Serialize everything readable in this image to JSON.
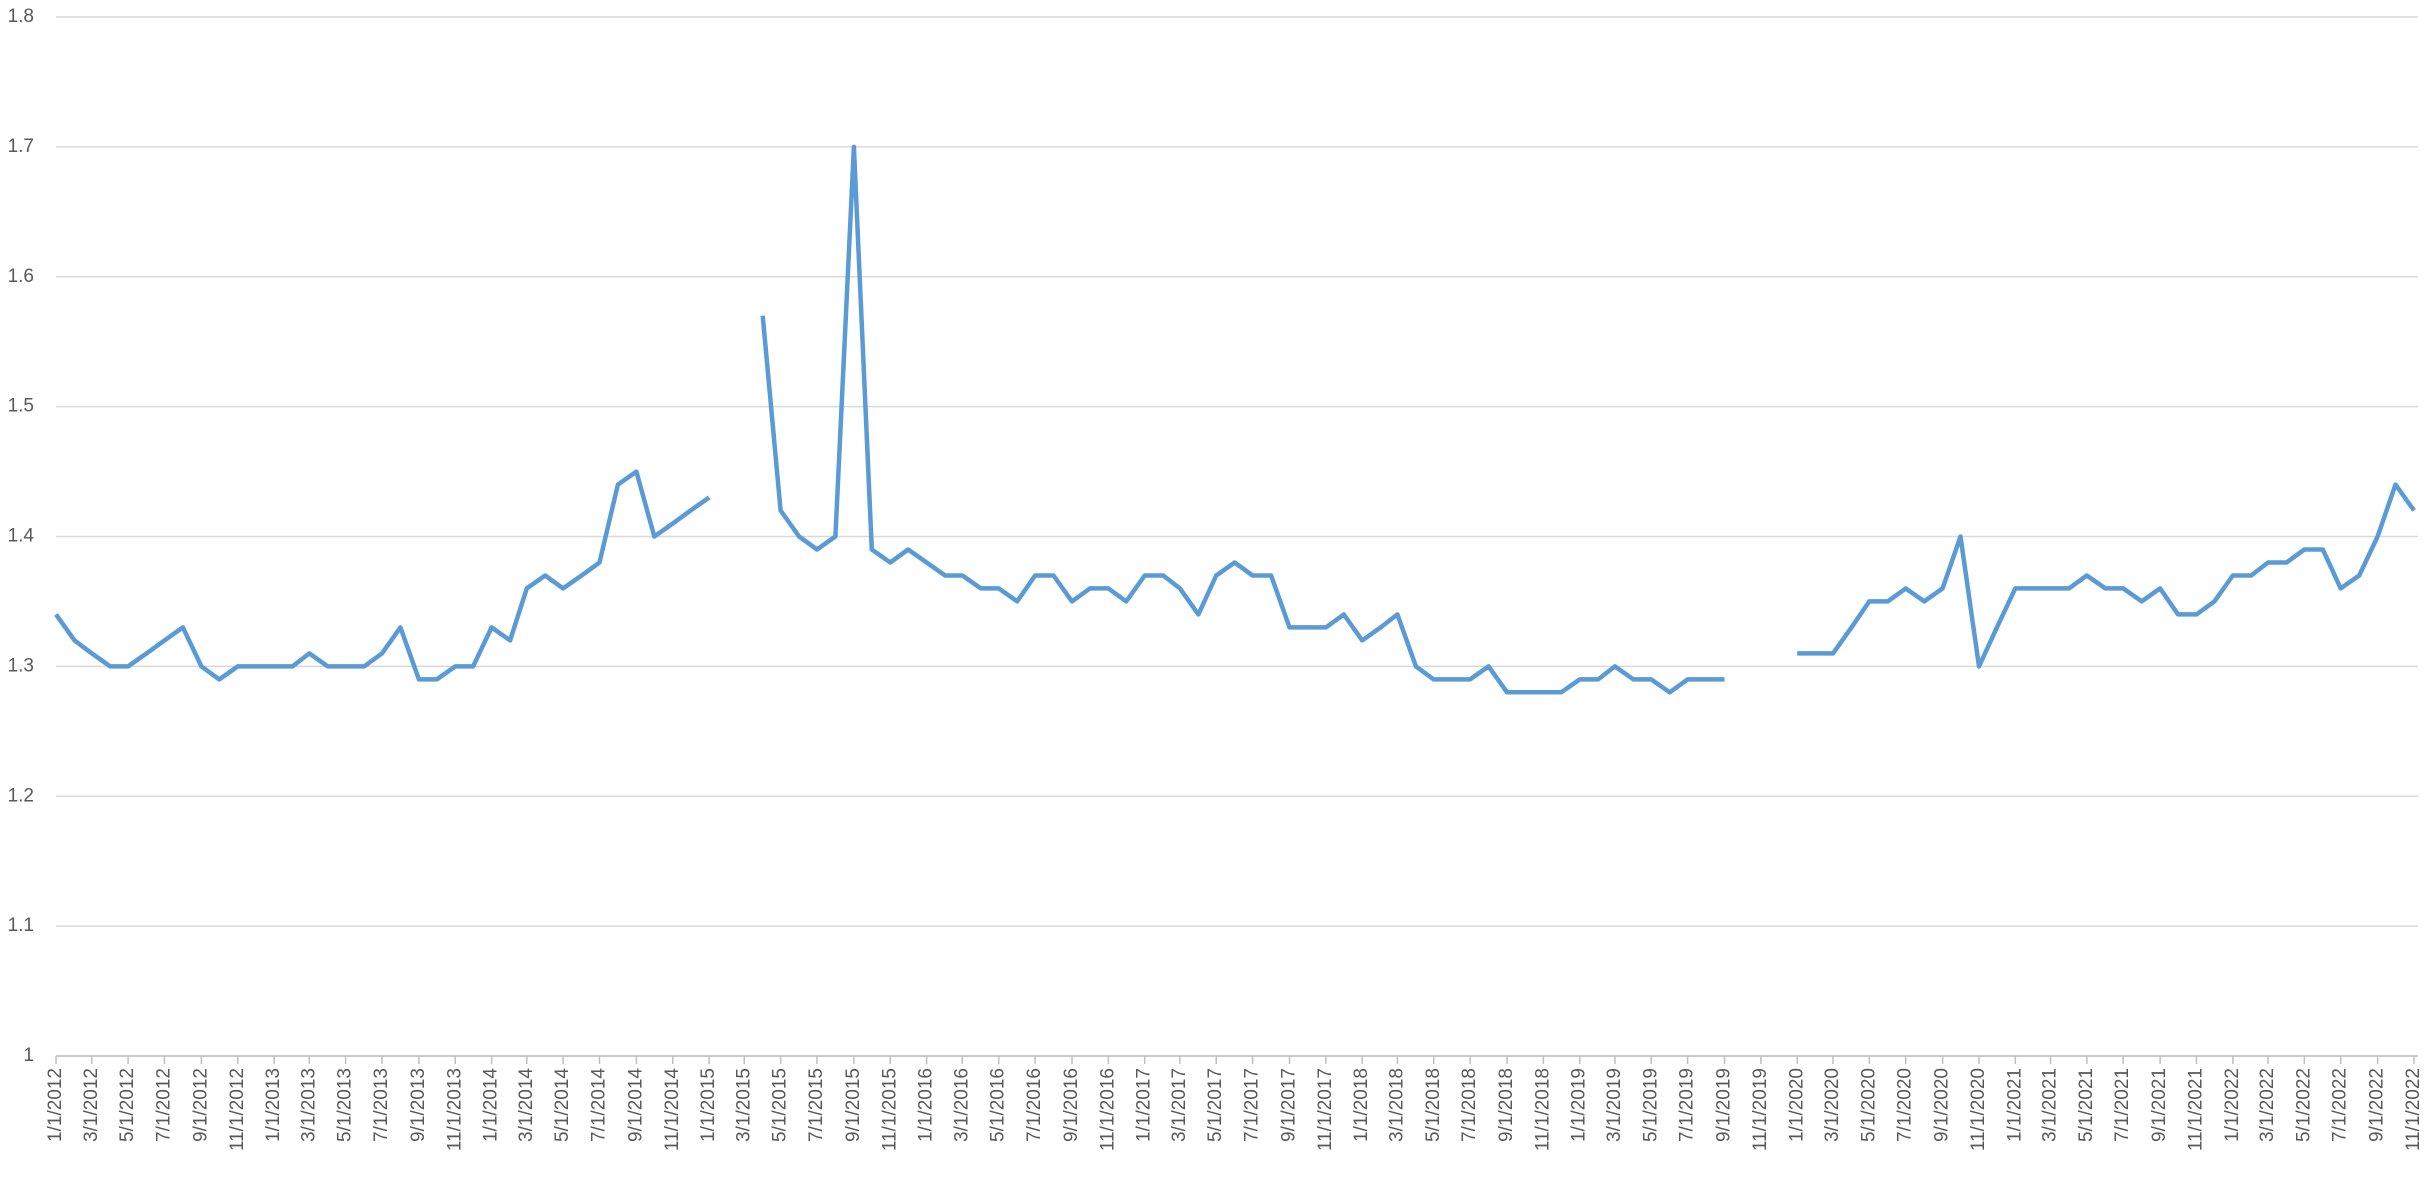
{
  "chart_data": {
    "type": "line",
    "x": [
      "1/1/2012",
      "2/1/2012",
      "3/1/2012",
      "4/1/2012",
      "5/1/2012",
      "6/1/2012",
      "7/1/2012",
      "8/1/2012",
      "9/1/2012",
      "10/1/2012",
      "11/1/2012",
      "12/1/2012",
      "1/1/2013",
      "2/1/2013",
      "3/1/2013",
      "4/1/2013",
      "5/1/2013",
      "6/1/2013",
      "7/1/2013",
      "8/1/2013",
      "9/1/2013",
      "10/1/2013",
      "11/1/2013",
      "12/1/2013",
      "1/1/2014",
      "2/1/2014",
      "3/1/2014",
      "4/1/2014",
      "5/1/2014",
      "6/1/2014",
      "7/1/2014",
      "8/1/2014",
      "9/1/2014",
      "10/1/2014",
      "11/1/2014",
      "12/1/2014",
      "1/1/2015",
      "2/1/2015",
      "3/1/2015",
      "4/1/2015",
      "5/1/2015",
      "6/1/2015",
      "7/1/2015",
      "8/1/2015",
      "9/1/2015",
      "10/1/2015",
      "11/1/2015",
      "12/1/2015",
      "1/1/2016",
      "2/1/2016",
      "3/1/2016",
      "4/1/2016",
      "5/1/2016",
      "6/1/2016",
      "7/1/2016",
      "8/1/2016",
      "9/1/2016",
      "10/1/2016",
      "11/1/2016",
      "12/1/2016",
      "1/1/2017",
      "2/1/2017",
      "3/1/2017",
      "4/1/2017",
      "5/1/2017",
      "6/1/2017",
      "7/1/2017",
      "8/1/2017",
      "9/1/2017",
      "10/1/2017",
      "11/1/2017",
      "12/1/2017",
      "1/1/2018",
      "2/1/2018",
      "3/1/2018",
      "4/1/2018",
      "5/1/2018",
      "6/1/2018",
      "7/1/2018",
      "8/1/2018",
      "9/1/2018",
      "10/1/2018",
      "11/1/2018",
      "12/1/2018",
      "1/1/2019",
      "2/1/2019",
      "3/1/2019",
      "4/1/2019",
      "5/1/2019",
      "6/1/2019",
      "7/1/2019",
      "8/1/2019",
      "9/1/2019",
      "10/1/2019",
      "11/1/2019",
      "12/1/2019",
      "1/1/2020",
      "2/1/2020",
      "3/1/2020",
      "4/1/2020",
      "5/1/2020",
      "6/1/2020",
      "7/1/2020",
      "8/1/2020",
      "9/1/2020",
      "10/1/2020",
      "11/1/2020",
      "12/1/2020",
      "1/1/2021",
      "2/1/2021",
      "3/1/2021",
      "4/1/2021",
      "5/1/2021",
      "6/1/2021",
      "7/1/2021",
      "8/1/2021",
      "9/1/2021",
      "10/1/2021",
      "11/1/2021",
      "12/1/2021",
      "1/1/2022",
      "2/1/2022",
      "3/1/2022",
      "4/1/2022",
      "5/1/2022",
      "6/1/2022",
      "7/1/2022",
      "8/1/2022",
      "9/1/2022",
      "10/1/2022",
      "11/1/2022"
    ],
    "series": [
      {
        "color": "#5b9bd5",
        "values": [
          1.34,
          1.32,
          1.31,
          1.3,
          1.3,
          1.31,
          1.32,
          1.33,
          1.3,
          1.29,
          1.3,
          1.3,
          1.3,
          1.3,
          1.31,
          1.3,
          1.3,
          1.3,
          1.31,
          1.33,
          1.29,
          1.29,
          1.3,
          1.3,
          1.33,
          1.32,
          1.36,
          1.37,
          1.36,
          1.37,
          1.38,
          1.44,
          1.45,
          1.4,
          1.41,
          1.42,
          1.43,
          null,
          null,
          1.57,
          1.42,
          1.4,
          1.39,
          1.4,
          1.7,
          1.39,
          1.38,
          1.39,
          1.38,
          1.37,
          1.37,
          1.36,
          1.36,
          1.35,
          1.37,
          1.37,
          1.35,
          1.36,
          1.36,
          1.35,
          1.37,
          1.37,
          1.36,
          1.34,
          1.37,
          1.38,
          1.37,
          1.37,
          1.33,
          1.33,
          1.33,
          1.34,
          1.32,
          1.33,
          1.34,
          1.3,
          1.29,
          1.29,
          1.29,
          1.3,
          1.28,
          1.28,
          1.28,
          1.28,
          1.29,
          1.29,
          1.3,
          1.29,
          1.29,
          1.28,
          1.29,
          1.29,
          1.29,
          null,
          null,
          null,
          1.31,
          1.31,
          1.31,
          1.33,
          1.35,
          1.35,
          1.36,
          1.35,
          1.36,
          1.4,
          1.3,
          1.33,
          1.36,
          1.36,
          1.36,
          1.36,
          1.37,
          1.36,
          1.36,
          1.35,
          1.36,
          1.34,
          1.34,
          1.35,
          1.37,
          1.37,
          1.38,
          1.38,
          1.39,
          1.39,
          1.36,
          1.37,
          1.4,
          1.44,
          1.42
        ]
      }
    ],
    "xlim": [
      "1/1/2012",
      "11/1/2022"
    ],
    "xticks": [
      "1/1/2012",
      "3/1/2012",
      "5/1/2012",
      "7/1/2012",
      "9/1/2012",
      "11/1/2012",
      "1/1/2013",
      "3/1/2013",
      "5/1/2013",
      "7/1/2013",
      "9/1/2013",
      "11/1/2013",
      "1/1/2014",
      "3/1/2014",
      "5/1/2014",
      "7/1/2014",
      "9/1/2014",
      "11/1/2014",
      "1/1/2015",
      "3/1/2015",
      "5/1/2015",
      "7/1/2015",
      "9/1/2015",
      "11/1/2015",
      "1/1/2016",
      "3/1/2016",
      "5/1/2016",
      "7/1/2016",
      "9/1/2016",
      "11/1/2016",
      "1/1/2017",
      "3/1/2017",
      "5/1/2017",
      "7/1/2017",
      "9/1/2017",
      "11/1/2017",
      "1/1/2018",
      "3/1/2018",
      "5/1/2018",
      "7/1/2018",
      "9/1/2018",
      "11/1/2018",
      "1/1/2019",
      "3/1/2019",
      "5/1/2019",
      "7/1/2019",
      "9/1/2019",
      "11/1/2019",
      "1/1/2020",
      "3/1/2020",
      "5/1/2020",
      "7/1/2020",
      "9/1/2020",
      "11/1/2020",
      "1/1/2021",
      "3/1/2021",
      "5/1/2021",
      "7/1/2021",
      "9/1/2021",
      "11/1/2021",
      "1/1/2022",
      "3/1/2022",
      "5/1/2022",
      "7/1/2022",
      "9/1/2022",
      "11/1/2022"
    ],
    "ylim": [
      1,
      1.8
    ],
    "yticks": [
      1,
      1.1,
      1.2,
      1.3,
      1.4,
      1.5,
      1.6,
      1.7,
      1.8
    ],
    "grid": true
  }
}
